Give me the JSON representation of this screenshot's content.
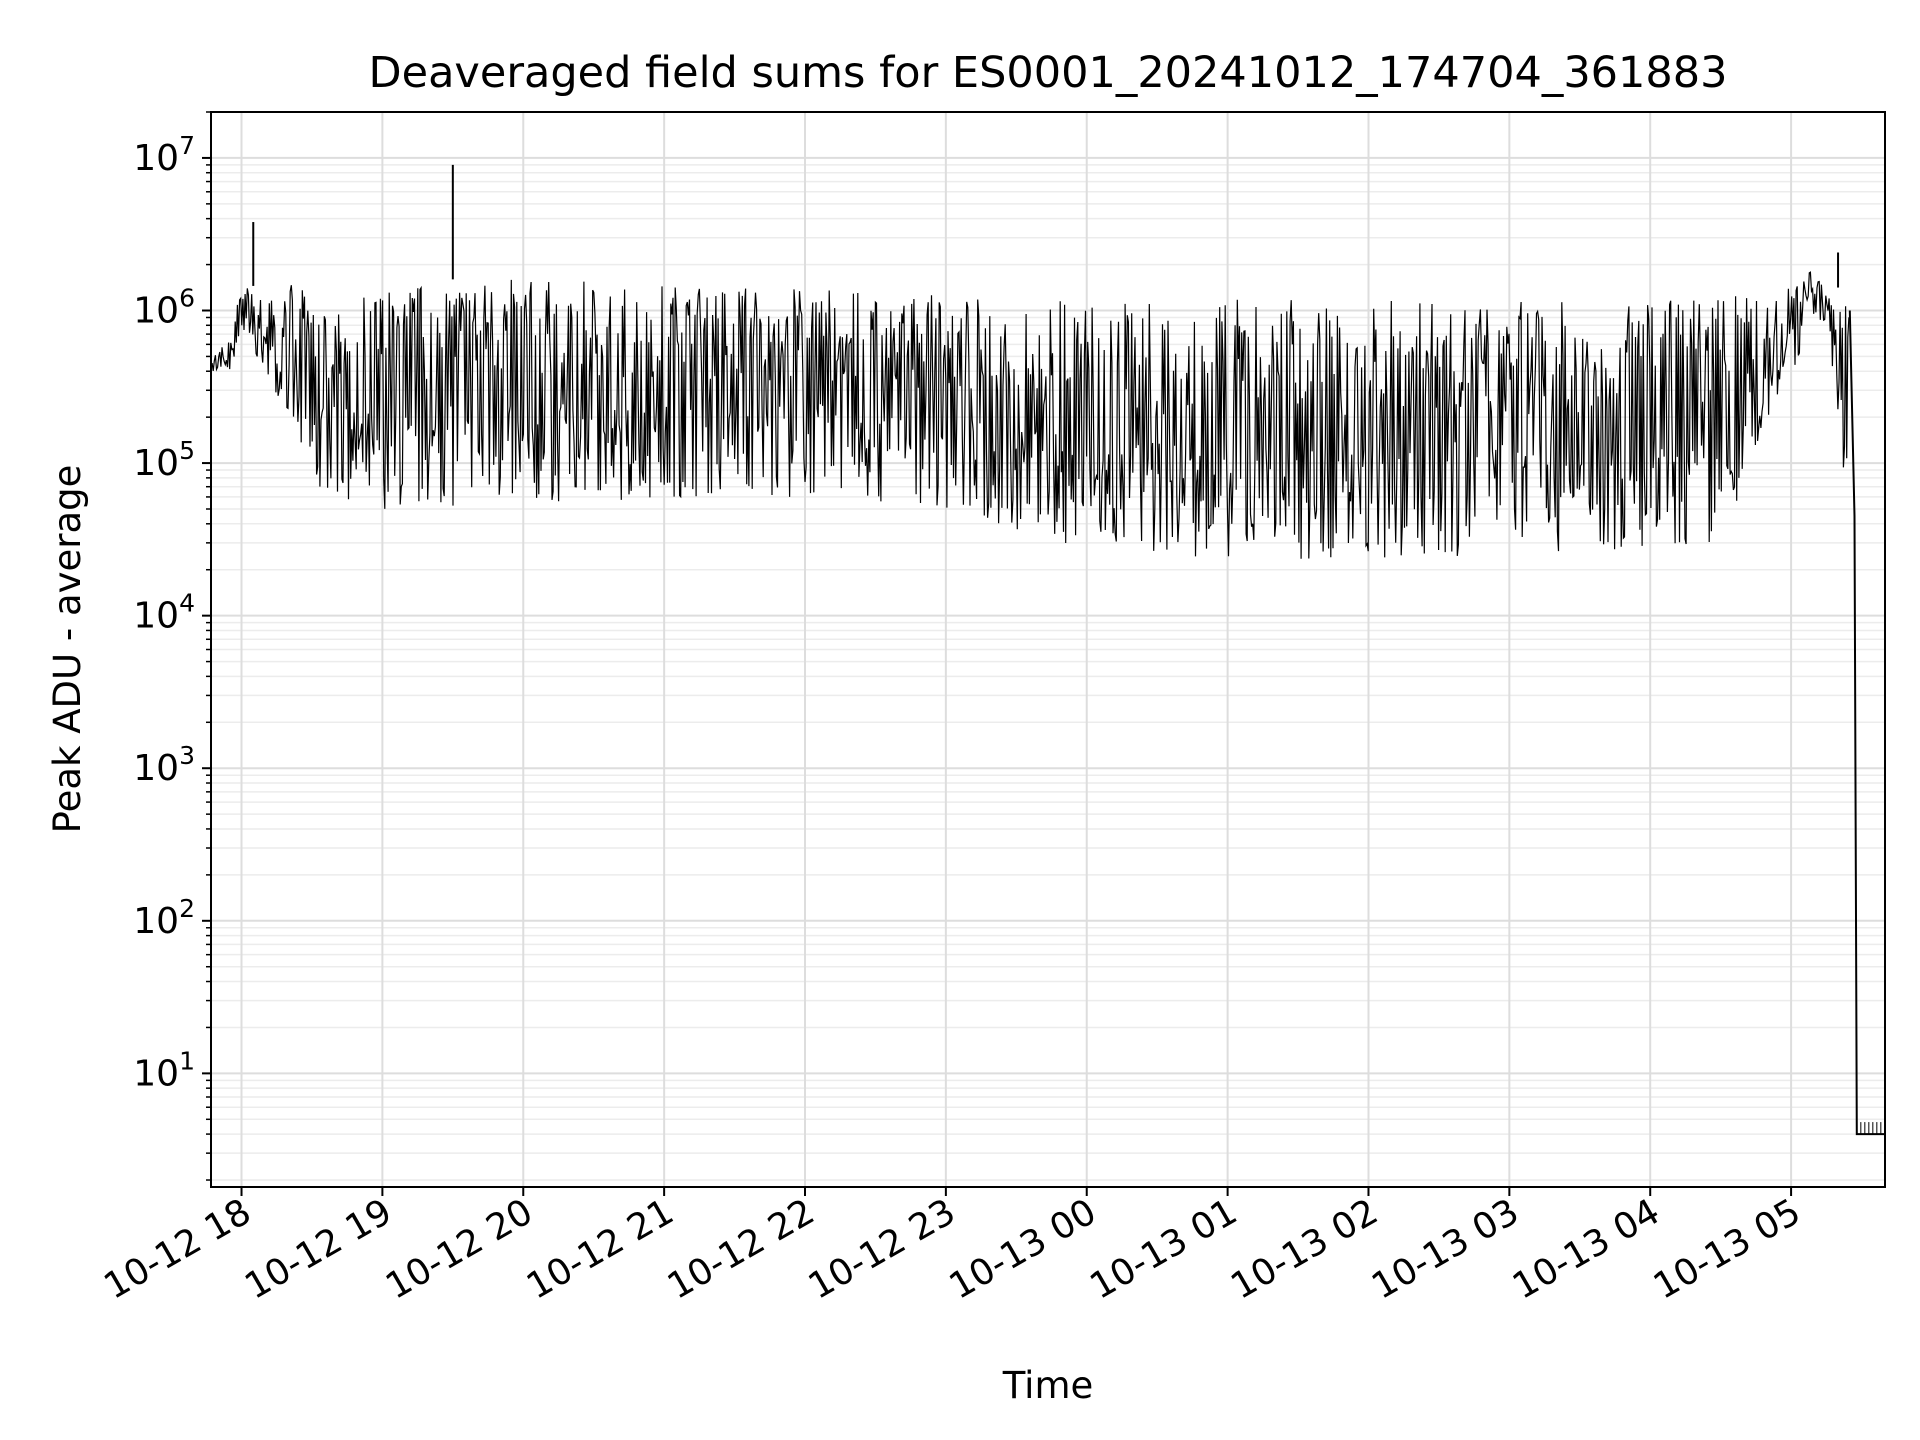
{
  "chart_data": {
    "type": "line",
    "title": "Deaveraged field sums for ES0001_20241012_174704_361883",
    "xlabel": "Time",
    "ylabel": "Peak ADU - average",
    "y_scale": "log",
    "ylim": [
      1.8,
      20000000
    ],
    "xlim": [
      "2024-10-12 17:47",
      "2024-10-13 05:40"
    ],
    "grid": "on (major and minor, light gray)",
    "line_color": "#000000",
    "x_ticks": [
      {
        "time": "2024-10-12 18:00",
        "label": "10-12 18"
      },
      {
        "time": "2024-10-12 19:00",
        "label": "10-12 19"
      },
      {
        "time": "2024-10-12 20:00",
        "label": "10-12 20"
      },
      {
        "time": "2024-10-12 21:00",
        "label": "10-12 21"
      },
      {
        "time": "2024-10-12 22:00",
        "label": "10-12 22"
      },
      {
        "time": "2024-10-12 23:00",
        "label": "10-12 23"
      },
      {
        "time": "2024-10-13 00:00",
        "label": "10-13 00"
      },
      {
        "time": "2024-10-13 01:00",
        "label": "10-13 01"
      },
      {
        "time": "2024-10-13 02:00",
        "label": "10-13 02"
      },
      {
        "time": "2024-10-13 03:00",
        "label": "10-13 03"
      },
      {
        "time": "2024-10-13 04:00",
        "label": "10-13 04"
      },
      {
        "time": "2024-10-13 05:00",
        "label": "10-13 05"
      }
    ],
    "y_ticks": [
      {
        "value": 10,
        "base": "10",
        "exp": "1"
      },
      {
        "value": 100,
        "base": "10",
        "exp": "2"
      },
      {
        "value": 1000,
        "base": "10",
        "exp": "3"
      },
      {
        "value": 10000,
        "base": "10",
        "exp": "4"
      },
      {
        "value": 100000,
        "base": "10",
        "exp": "5"
      },
      {
        "value": 1000000,
        "base": "10",
        "exp": "6"
      },
      {
        "value": 10000000,
        "base": "10",
        "exp": "7"
      }
    ],
    "series": [
      {
        "envelope": [
          {
            "t": "2024-10-12 17:47",
            "low": 350000,
            "high": 500000
          },
          {
            "t": "2024-10-12 17:55",
            "low": 400000,
            "high": 650000
          },
          {
            "t": "2024-10-12 18:00",
            "low": 700000,
            "high": 1500000
          },
          {
            "t": "2024-10-12 18:10",
            "low": 400000,
            "high": 1400000
          },
          {
            "t": "2024-10-12 18:20",
            "low": 200000,
            "high": 1500000
          },
          {
            "t": "2024-10-12 18:30",
            "low": 65000,
            "high": 1300000
          },
          {
            "t": "2024-10-12 18:45",
            "low": 58000,
            "high": 1200000
          },
          {
            "t": "2024-10-12 19:00",
            "low": 50000,
            "high": 1400000
          },
          {
            "t": "2024-10-12 19:30",
            "low": 50000,
            "high": 1600000
          },
          {
            "t": "2024-10-12 20:00",
            "low": 55000,
            "high": 1600000
          },
          {
            "t": "2024-10-12 20:30",
            "low": 55000,
            "high": 1550000
          },
          {
            "t": "2024-10-12 21:00",
            "low": 60000,
            "high": 1500000
          },
          {
            "t": "2024-10-12 21:30",
            "low": 60000,
            "high": 1500000
          },
          {
            "t": "2024-10-12 22:00",
            "low": 60000,
            "high": 1450000
          },
          {
            "t": "2024-10-12 22:30",
            "low": 55000,
            "high": 1300000
          },
          {
            "t": "2024-10-12 23:00",
            "low": 50000,
            "high": 1250000
          },
          {
            "t": "2024-10-12 23:30",
            "low": 35000,
            "high": 1200000
          },
          {
            "t": "2024-10-13 00:00",
            "low": 28000,
            "high": 1200000
          },
          {
            "t": "2024-10-13 00:30",
            "low": 25000,
            "high": 1100000
          },
          {
            "t": "2024-10-13 01:00",
            "low": 24000,
            "high": 1200000
          },
          {
            "t": "2024-10-13 01:30",
            "low": 23000,
            "high": 1200000
          },
          {
            "t": "2024-10-13 02:00",
            "low": 22000,
            "high": 1200000
          },
          {
            "t": "2024-10-13 02:30",
            "low": 24000,
            "high": 1150000
          },
          {
            "t": "2024-10-13 03:00",
            "low": 25000,
            "high": 1150000
          },
          {
            "t": "2024-10-13 03:30",
            "low": 27000,
            "high": 1150000
          },
          {
            "t": "2024-10-13 04:00",
            "low": 26000,
            "high": 1200000
          },
          {
            "t": "2024-10-13 04:30",
            "low": 25000,
            "high": 1250000
          },
          {
            "t": "2024-10-13 04:55",
            "low": 300000,
            "high": 1500000
          },
          {
            "t": "2024-10-13 05:15",
            "low": 900000,
            "high": 2000000
          },
          {
            "t": "2024-10-13 05:25",
            "low": 40000,
            "high": 1000000
          }
        ],
        "points": [
          {
            "t": "2024-10-12 18:05",
            "value": 3800000
          },
          {
            "t": "2024-10-12 19:30",
            "value": 9000000
          },
          {
            "t": "2024-10-13 05:20",
            "value": 2400000
          },
          {
            "t": "2024-10-13 05:27",
            "value": 45000
          },
          {
            "t": "2024-10-13 05:28",
            "value": 4
          },
          {
            "t": "2024-10-13 05:40",
            "value": 4
          }
        ]
      }
    ]
  }
}
